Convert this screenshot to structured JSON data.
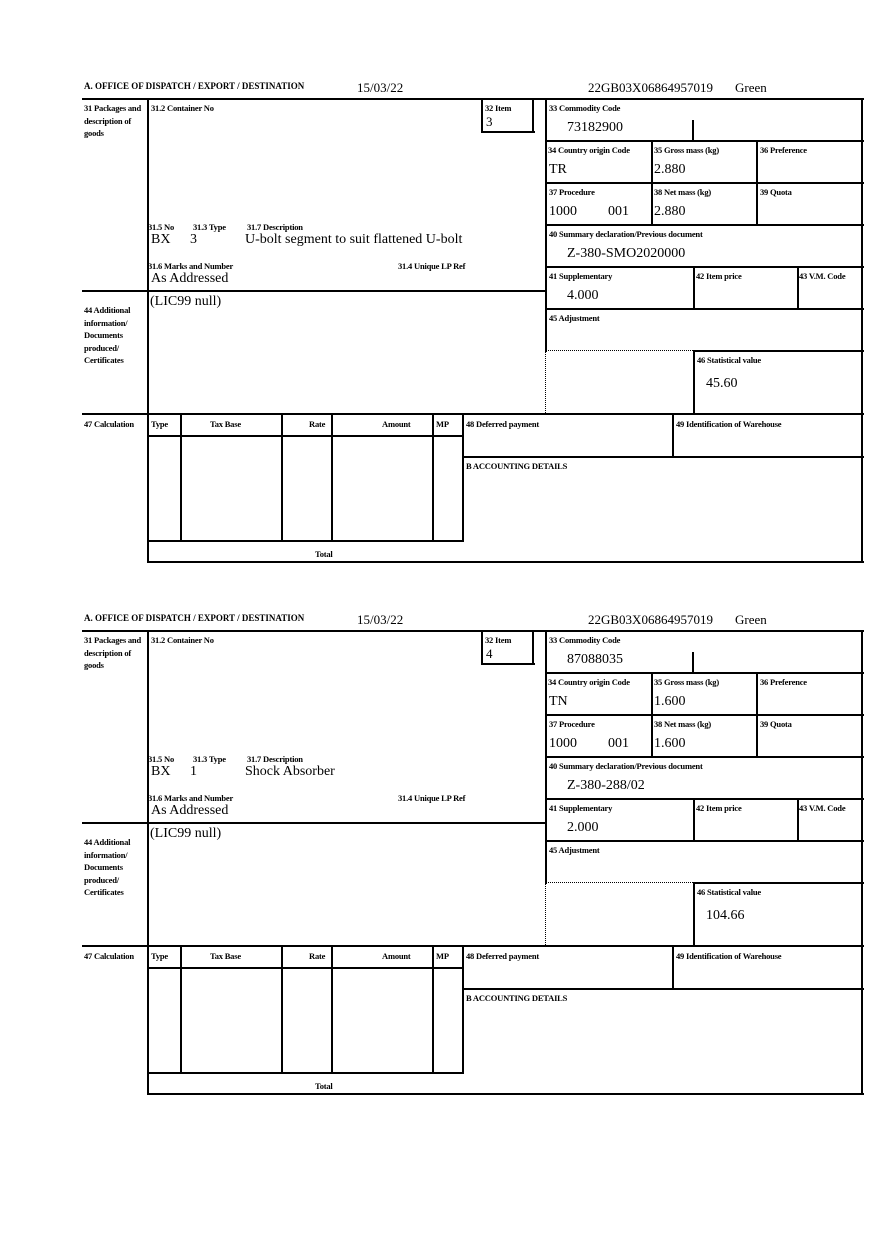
{
  "labels": {
    "header_office": "A. OFFICE OF DISPATCH / EXPORT / DESTINATION",
    "packages": "31 Packages and description of goods",
    "container_no": "31.2 Container No",
    "item": "32 Item",
    "no": "31.5 No",
    "type": "31.3 Type",
    "description": "31.7 Description",
    "marks": "31.6 Marks and Number",
    "unique_lp_ref": "31.4 Unique LP Ref",
    "commodity_code": "33 Commodity Code",
    "country_origin": "34 Country origin Code",
    "gross_mass": "35 Gross mass (kg)",
    "preference": "36 Preference",
    "procedure": "37 Procedure",
    "net_mass": "38 Net mass (kg)",
    "quota": "39 Quota",
    "summary_declaration": "40 Summary declaration/Previous document",
    "supplementary": "41 Supplementary",
    "item_price": "42 Item price",
    "vm_code": "43 V.M. Code",
    "additional_info": "44 Additional information/ Documents produced/ Certificates",
    "adjustment": "45 Adjustment",
    "statistical_value": "46 Statistical value",
    "calculation": "47 Calculation",
    "calc_type": "Type",
    "calc_tax_base": "Tax Base",
    "calc_rate": "Rate",
    "calc_amount": "Amount",
    "calc_mp": "MP",
    "deferred_payment": "48 Deferred payment",
    "warehouse": "49 Identification of Warehouse",
    "accounting": "B ACCOUNTING DETAILS",
    "total": "Total"
  },
  "forms": [
    {
      "date": "15/03/22",
      "reference": "22GB03X06864957019",
      "route": "Green",
      "item": "3",
      "no": "BX",
      "type": "3",
      "description": "U-bolt segment to suit flattened U-bolt",
      "marks": "As Addressed",
      "commodity_code": "73182900",
      "country_origin": "TR",
      "gross_mass": "2.880",
      "procedure_code": "1000",
      "procedure_extra": "001",
      "net_mass": "2.880",
      "summary_declaration": "Z-380-SMO2020000",
      "supplementary": "4.000",
      "additional_info": "(LIC99 null)",
      "statistical_value": "45.60"
    },
    {
      "date": "15/03/22",
      "reference": "22GB03X06864957019",
      "route": "Green",
      "item": "4",
      "no": "BX",
      "type": "1",
      "description": "Shock Absorber",
      "marks": "As Addressed",
      "commodity_code": "87088035",
      "country_origin": "TN",
      "gross_mass": "1.600",
      "procedure_code": "1000",
      "procedure_extra": "001",
      "net_mass": "1.600",
      "summary_declaration": "Z-380-288/02",
      "supplementary": "2.000",
      "additional_info": "(LIC99 null)",
      "statistical_value": "104.66"
    }
  ]
}
